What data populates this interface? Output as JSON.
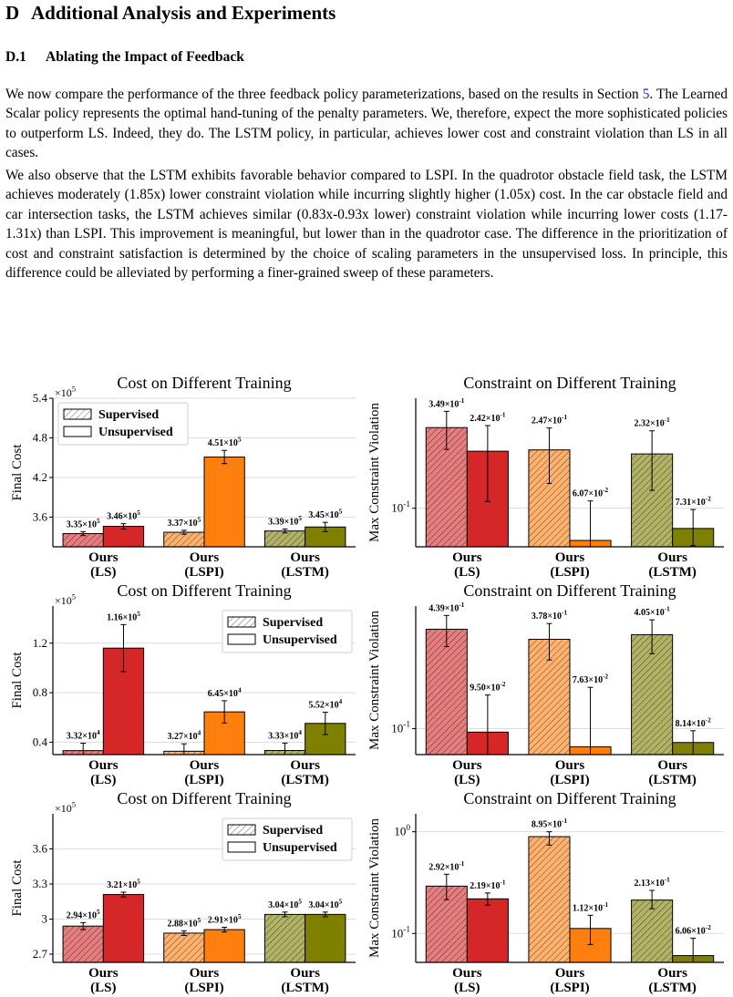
{
  "section": {
    "number": "D",
    "title": "Additional Analysis and Experiments"
  },
  "subsection": {
    "number": "D.1",
    "title": "Ablating the Impact of Feedback"
  },
  "paragraphs": [
    {
      "before_ref": "We now compare the performance of the three feedback policy parameterizations, based on the results in Section ",
      "ref": "5",
      "after_ref": ". The Learned Scalar policy represents the optimal hand-tuning of the penalty parameters. We, therefore, expect the more sophisticated policies to outperform LS. Indeed, they do. The LSTM policy, in particular, achieves lower cost and constraint violation than LS in all cases."
    },
    {
      "text": "We also observe that the LSTM exhibits favorable behavior compared to LSPI. In the quadrotor obstacle field task, the LSTM achieves moderately (1.85x) lower constraint violation while incurring slightly higher (1.05x) cost. In the car obstacle field and car intersection tasks, the LSTM achieves similar (0.83x-0.93x lower) constraint violation while incurring lower costs (1.17-1.31x) than LSPI. This improvement is meaningful, but lower than in the quadrotor case. The difference in the prioritization of cost and constraint satisfaction is determined by the choice of scaling parameters in the unsupervised loss. In principle, this difference could be alleviated by performing a finer-grained sweep of these parameters."
    }
  ],
  "colors": {
    "ls": "#d62728",
    "lspi": "#ff7f0e",
    "lstm": "#7f8000"
  },
  "chart_data": [
    {
      "type": "bar",
      "title": "Cost on Different Training",
      "ylabel": "Final Cost",
      "exponent_label": "×10^5",
      "ylim": [
        3.15,
        5.4
      ],
      "yticks": [
        3.6,
        4.2,
        4.8,
        5.4
      ],
      "ytick_labels": [
        "3.6",
        "4.2",
        "4.8",
        "5.4"
      ],
      "categories": [
        [
          "Ours",
          "(LS)"
        ],
        [
          "Ours",
          "(LSPI)"
        ],
        [
          "Ours",
          "(LSTM)"
        ]
      ],
      "legend": {
        "position": "top-left",
        "entries": [
          "Supervised",
          "Unsupervised"
        ]
      },
      "series": [
        {
          "name": "Supervised",
          "values": [
            3.35,
            3.37,
            3.39
          ],
          "err": [
            0.03,
            0.03,
            0.03
          ],
          "labels": [
            "3.35×10^5",
            "3.37×10^5",
            "3.39×10^5"
          ]
        },
        {
          "name": "Unsupervised",
          "values": [
            3.46,
            4.51,
            3.45
          ],
          "err": [
            0.04,
            0.1,
            0.07
          ],
          "labels": [
            "3.46×10^5",
            "4.51×10^5",
            "3.45×10^5"
          ]
        }
      ]
    },
    {
      "type": "bar",
      "title": "Constraint on Different Training",
      "ylabel": "Max Constraint Violation",
      "log": true,
      "ylim": [
        0.055,
        0.55
      ],
      "yticks": [
        0.1
      ],
      "ytick_labels": [
        "10^-1"
      ],
      "categories": [
        [
          "Ours",
          "(LS)"
        ],
        [
          "Ours",
          "(LSPI)"
        ],
        [
          "Ours",
          "(LSTM)"
        ]
      ],
      "series": [
        {
          "name": "Supervised",
          "values": [
            0.349,
            0.247,
            0.232
          ],
          "err_low": [
            0.249,
            0.147,
            0.132
          ],
          "err_high": [
            0.449,
            0.347,
            0.332
          ],
          "labels": [
            "3.49×10^-1",
            "2.47×10^-1",
            "2.32×10^-1"
          ]
        },
        {
          "name": "Unsupervised",
          "values": [
            0.242,
            0.0607,
            0.0731
          ],
          "err_low": [
            0.111,
            0.04,
            0.056
          ],
          "err_high": [
            0.36,
            0.112,
            0.098
          ],
          "labels": [
            "2.42×10^-1",
            "6.07×10^-2",
            "7.31×10^-2"
          ]
        }
      ]
    },
    {
      "type": "bar",
      "title": "Cost on Different Training",
      "ylabel": "Final Cost",
      "exponent_label": "×10^5",
      "ylim": [
        0.3,
        1.5
      ],
      "yticks": [
        0.4,
        0.8,
        1.2
      ],
      "ytick_labels": [
        "0.4",
        "0.8",
        "1.2"
      ],
      "categories": [
        [
          "Ours",
          "(LS)"
        ],
        [
          "Ours",
          "(LSPI)"
        ],
        [
          "Ours",
          "(LSTM)"
        ]
      ],
      "legend": {
        "position": "top-right",
        "entries": [
          "Supervised",
          "Unsupervised"
        ]
      },
      "series": [
        {
          "name": "Supervised",
          "values": [
            0.332,
            0.327,
            0.333
          ],
          "err": [
            0.06,
            0.06,
            0.06
          ],
          "labels": [
            "3.32×10^4",
            "3.27×10^4",
            "3.33×10^4"
          ]
        },
        {
          "name": "Unsupervised",
          "values": [
            1.16,
            0.645,
            0.552
          ],
          "err": [
            0.19,
            0.09,
            0.09
          ],
          "labels": [
            "1.16×10^5",
            "6.45×10^4",
            "5.52×10^4"
          ]
        }
      ]
    },
    {
      "type": "bar",
      "title": "Constraint on Different Training",
      "ylabel": "Max Constraint Violation",
      "log": true,
      "ylim": [
        0.068,
        0.62
      ],
      "yticks": [
        0.1
      ],
      "ytick_labels": [
        "10^-1"
      ],
      "categories": [
        [
          "Ours",
          "(LS)"
        ],
        [
          "Ours",
          "(LSPI)"
        ],
        [
          "Ours",
          "(LSTM)"
        ]
      ],
      "series": [
        {
          "name": "Supervised",
          "values": [
            0.439,
            0.378,
            0.405
          ],
          "err_low": [
            0.339,
            0.278,
            0.305
          ],
          "err_high": [
            0.539,
            0.478,
            0.505
          ],
          "labels": [
            "4.39×10^-1",
            "3.78×10^-1",
            "4.05×10^-1"
          ]
        },
        {
          "name": "Unsupervised",
          "values": [
            0.095,
            0.0763,
            0.0814
          ],
          "err_low": [
            0.055,
            0.055,
            0.068
          ],
          "err_high": [
            0.165,
            0.185,
            0.097
          ],
          "labels": [
            "9.50×10^-2",
            "7.63×10^-2",
            "8.14×10^-2"
          ]
        }
      ]
    },
    {
      "type": "bar",
      "title": "Cost on Different Training",
      "ylabel": "Final Cost",
      "exponent_label": "×10^5",
      "ylim": [
        2.63,
        3.9
      ],
      "yticks": [
        2.7,
        3.0,
        3.3,
        3.6
      ],
      "ytick_labels": [
        "2.7",
        "3",
        "3.3",
        "3.6"
      ],
      "categories": [
        [
          "Ours",
          "(LS)"
        ],
        [
          "Ours",
          "(LSPI)"
        ],
        [
          "Ours",
          "(LSTM)"
        ]
      ],
      "legend": {
        "position": "top-right",
        "entries": [
          "Supervised",
          "Unsupervised"
        ]
      },
      "series": [
        {
          "name": "Supervised",
          "values": [
            2.94,
            2.88,
            3.04
          ],
          "err": [
            0.03,
            0.02,
            0.02
          ],
          "labels": [
            "2.94×10^5",
            "2.88×10^5",
            "3.04×10^5"
          ]
        },
        {
          "name": "Unsupervised",
          "values": [
            3.21,
            2.91,
            3.04
          ],
          "err": [
            0.02,
            0.02,
            0.02
          ],
          "labels": [
            "3.21×10^5",
            "2.91×10^5",
            "3.04×10^5"
          ]
        }
      ]
    },
    {
      "type": "bar",
      "title": "Constraint on Different Training",
      "ylabel": "Max Constraint Violation",
      "log": true,
      "ylim": [
        0.052,
        1.5
      ],
      "yticks": [
        0.1,
        1.0
      ],
      "ytick_labels": [
        "10^-1",
        "10^0"
      ],
      "categories": [
        [
          "Ours",
          "(LS)"
        ],
        [
          "Ours",
          "(LSPI)"
        ],
        [
          "Ours",
          "(LSTM)"
        ]
      ],
      "series": [
        {
          "name": "Supervised",
          "values": [
            0.292,
            0.895,
            0.213
          ],
          "err_low": [
            0.215,
            0.74,
            0.175
          ],
          "err_high": [
            0.382,
            1.0,
            0.265
          ],
          "labels": [
            "2.92×10^-1",
            "8.95×10^-1",
            "2.13×10^-1"
          ]
        },
        {
          "name": "Unsupervised",
          "values": [
            0.219,
            0.112,
            0.0606
          ],
          "err_low": [
            0.19,
            0.078,
            0.045
          ],
          "err_high": [
            0.25,
            0.151,
            0.09
          ],
          "labels": [
            "2.19×10^-1",
            "1.12×10^-1",
            "6.06×10^-2"
          ]
        }
      ]
    }
  ]
}
